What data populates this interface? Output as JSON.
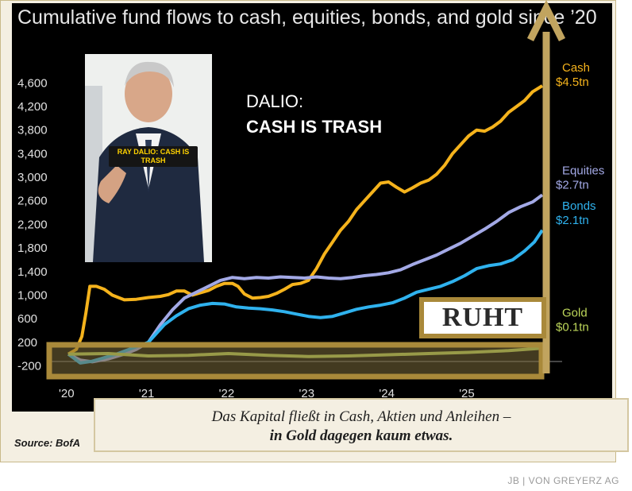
{
  "chart_data": {
    "type": "line",
    "title": "Cumulative fund flows to cash, equities, bonds, and gold since ’20",
    "x_tick_labels": [
      "'20",
      "'21",
      "'22",
      "'23",
      "'24",
      "'25"
    ],
    "y_tick_labels": [
      "4,600",
      "4,200",
      "3,800",
      "3,400",
      "3,000",
      "2,600",
      "2,200",
      "1,800",
      "1,400",
      "1,000",
      "600",
      "200",
      "-200"
    ],
    "y_ticks": [
      4600,
      4200,
      3800,
      3400,
      3000,
      2600,
      2200,
      1800,
      1400,
      1000,
      600,
      200,
      -200
    ],
    "ylim": [
      -300,
      4900
    ],
    "xlim": [
      2020.0,
      2025.95
    ],
    "grid": false,
    "series": [
      {
        "name": "Cash",
        "end_label": "$4.5tn",
        "color": "#f5b31c",
        "points": [
          [
            2020.0,
            0
          ],
          [
            2020.1,
            80
          ],
          [
            2020.17,
            300
          ],
          [
            2020.22,
            700
          ],
          [
            2020.27,
            1150
          ],
          [
            2020.35,
            1150
          ],
          [
            2020.45,
            1100
          ],
          [
            2020.55,
            1000
          ],
          [
            2020.7,
            920
          ],
          [
            2020.85,
            930
          ],
          [
            2021.0,
            960
          ],
          [
            2021.15,
            980
          ],
          [
            2021.25,
            1010
          ],
          [
            2021.35,
            1070
          ],
          [
            2021.45,
            1070
          ],
          [
            2021.55,
            1000
          ],
          [
            2021.65,
            1040
          ],
          [
            2021.75,
            1080
          ],
          [
            2021.85,
            1150
          ],
          [
            2021.95,
            1200
          ],
          [
            2022.05,
            1200
          ],
          [
            2022.12,
            1150
          ],
          [
            2022.2,
            1020
          ],
          [
            2022.3,
            950
          ],
          [
            2022.4,
            960
          ],
          [
            2022.5,
            980
          ],
          [
            2022.6,
            1030
          ],
          [
            2022.7,
            1100
          ],
          [
            2022.8,
            1180
          ],
          [
            2022.9,
            1200
          ],
          [
            2023.0,
            1250
          ],
          [
            2023.1,
            1450
          ],
          [
            2023.2,
            1700
          ],
          [
            2023.3,
            1900
          ],
          [
            2023.4,
            2100
          ],
          [
            2023.5,
            2250
          ],
          [
            2023.6,
            2450
          ],
          [
            2023.7,
            2600
          ],
          [
            2023.8,
            2750
          ],
          [
            2023.9,
            2900
          ],
          [
            2024.0,
            2920
          ],
          [
            2024.1,
            2830
          ],
          [
            2024.2,
            2750
          ],
          [
            2024.3,
            2820
          ],
          [
            2024.4,
            2900
          ],
          [
            2024.5,
            2950
          ],
          [
            2024.6,
            3050
          ],
          [
            2024.7,
            3200
          ],
          [
            2024.8,
            3400
          ],
          [
            2024.9,
            3550
          ],
          [
            2025.0,
            3700
          ],
          [
            2025.1,
            3800
          ],
          [
            2025.2,
            3780
          ],
          [
            2025.3,
            3850
          ],
          [
            2025.4,
            3950
          ],
          [
            2025.5,
            4100
          ],
          [
            2025.6,
            4200
          ],
          [
            2025.7,
            4300
          ],
          [
            2025.8,
            4450
          ],
          [
            2025.92,
            4550
          ]
        ]
      },
      {
        "name": "Equities",
        "end_label": "$2.7tn",
        "color": "#a3a9e6",
        "points": [
          [
            2020.0,
            0
          ],
          [
            2020.15,
            -100
          ],
          [
            2020.3,
            -130
          ],
          [
            2020.5,
            -80
          ],
          [
            2020.7,
            0
          ],
          [
            2020.85,
            80
          ],
          [
            2021.0,
            200
          ],
          [
            2021.15,
            500
          ],
          [
            2021.3,
            750
          ],
          [
            2021.45,
            950
          ],
          [
            2021.6,
            1050
          ],
          [
            2021.75,
            1150
          ],
          [
            2021.9,
            1250
          ],
          [
            2022.05,
            1300
          ],
          [
            2022.2,
            1280
          ],
          [
            2022.35,
            1300
          ],
          [
            2022.5,
            1290
          ],
          [
            2022.65,
            1310
          ],
          [
            2022.8,
            1300
          ],
          [
            2022.95,
            1290
          ],
          [
            2023.1,
            1310
          ],
          [
            2023.25,
            1290
          ],
          [
            2023.4,
            1280
          ],
          [
            2023.55,
            1300
          ],
          [
            2023.7,
            1330
          ],
          [
            2023.85,
            1350
          ],
          [
            2024.0,
            1380
          ],
          [
            2024.15,
            1430
          ],
          [
            2024.3,
            1520
          ],
          [
            2024.45,
            1600
          ],
          [
            2024.6,
            1680
          ],
          [
            2024.75,
            1780
          ],
          [
            2024.9,
            1880
          ],
          [
            2025.05,
            2000
          ],
          [
            2025.2,
            2120
          ],
          [
            2025.35,
            2250
          ],
          [
            2025.5,
            2400
          ],
          [
            2025.65,
            2500
          ],
          [
            2025.8,
            2580
          ],
          [
            2025.92,
            2700
          ]
        ]
      },
      {
        "name": "Bonds",
        "end_label": "$2.1tn",
        "color": "#2fb2ee",
        "points": [
          [
            2020.0,
            0
          ],
          [
            2020.15,
            -150
          ],
          [
            2020.3,
            -120
          ],
          [
            2020.45,
            -60
          ],
          [
            2020.6,
            0
          ],
          [
            2020.8,
            100
          ],
          [
            2021.0,
            200
          ],
          [
            2021.1,
            350
          ],
          [
            2021.2,
            500
          ],
          [
            2021.35,
            650
          ],
          [
            2021.5,
            770
          ],
          [
            2021.65,
            830
          ],
          [
            2021.8,
            860
          ],
          [
            2021.95,
            850
          ],
          [
            2022.1,
            800
          ],
          [
            2022.25,
            780
          ],
          [
            2022.4,
            770
          ],
          [
            2022.55,
            750
          ],
          [
            2022.7,
            720
          ],
          [
            2022.85,
            680
          ],
          [
            2023.0,
            640
          ],
          [
            2023.15,
            620
          ],
          [
            2023.3,
            640
          ],
          [
            2023.45,
            700
          ],
          [
            2023.6,
            760
          ],
          [
            2023.75,
            800
          ],
          [
            2023.9,
            830
          ],
          [
            2024.05,
            870
          ],
          [
            2024.2,
            950
          ],
          [
            2024.35,
            1050
          ],
          [
            2024.5,
            1100
          ],
          [
            2024.65,
            1150
          ],
          [
            2024.8,
            1230
          ],
          [
            2024.95,
            1330
          ],
          [
            2025.1,
            1450
          ],
          [
            2025.25,
            1500
          ],
          [
            2025.4,
            1530
          ],
          [
            2025.55,
            1600
          ],
          [
            2025.7,
            1750
          ],
          [
            2025.82,
            1900
          ],
          [
            2025.92,
            2100
          ]
        ]
      },
      {
        "name": "Gold",
        "end_label": "$0.1tn",
        "color": "#bdd65a",
        "points": [
          [
            2020.0,
            0
          ],
          [
            2020.5,
            10
          ],
          [
            2021.0,
            -30
          ],
          [
            2021.5,
            -20
          ],
          [
            2022.0,
            10
          ],
          [
            2022.5,
            -20
          ],
          [
            2023.0,
            -40
          ],
          [
            2023.5,
            -30
          ],
          [
            2024.0,
            -10
          ],
          [
            2024.5,
            10
          ],
          [
            2025.0,
            30
          ],
          [
            2025.5,
            60
          ],
          [
            2025.92,
            100
          ]
        ]
      }
    ]
  },
  "overlay": {
    "photo_caption": "RAY DALIO: CASH IS TRASH",
    "headline_line1": "DALIO:",
    "headline_line2": "CASH IS TRASH",
    "status_box": "RUHT"
  },
  "caption": {
    "line1": "Das Kapital fließt in Cash, Aktien und Anleihen –",
    "line2": "in Gold dagegen kaum etwas."
  },
  "source": "Source: BofA",
  "credit": "JB | VON GREYERZ AG",
  "colors": {
    "chart_bg": "#000000",
    "arrow": "#c1a45f",
    "band": "#a9893a",
    "frame": "#f4efe2"
  }
}
